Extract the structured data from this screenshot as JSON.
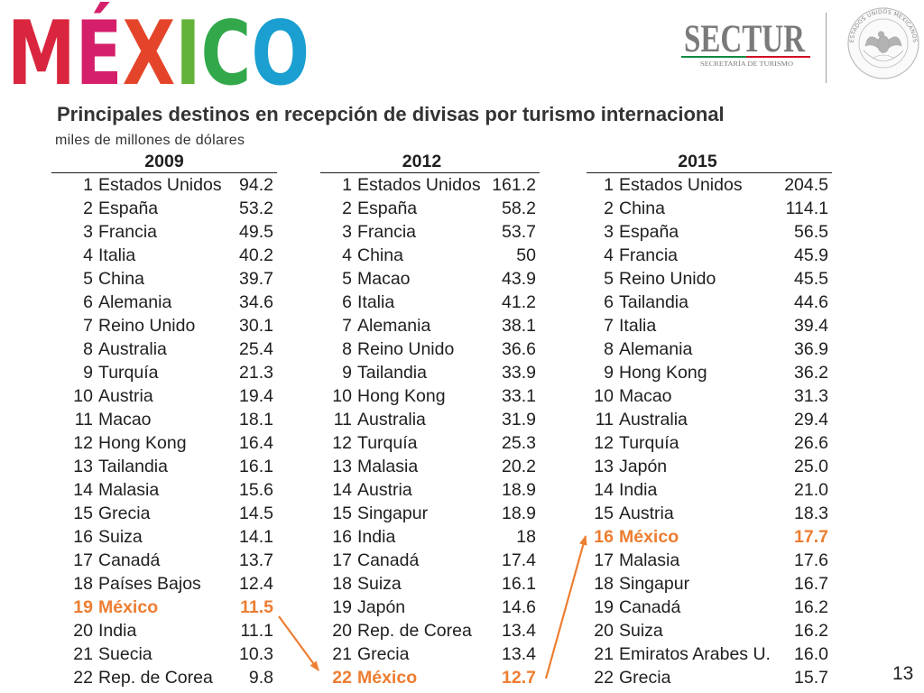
{
  "logo": {
    "letters": [
      "M",
      "É",
      "X",
      "I",
      "C",
      "O"
    ],
    "colors": [
      "#D9263E",
      "#D51F6B",
      "#E4452A",
      "#63B23A",
      "#33A84B",
      "#1A9FD0"
    ]
  },
  "sectur": {
    "name": "SECTUR",
    "tagline": "SECRETARÍA DE TURISMO",
    "flag_colors": [
      "#0B8A43",
      "#CE1126"
    ]
  },
  "seal": {
    "text": "ESTADOS UNIDOS MEXICANOS"
  },
  "title": "Principales destinos en recepción de divisas por turismo internacional",
  "subtitle": "miles de millones de dólares",
  "highlight_color": "#ED7D31",
  "tables": [
    {
      "year": "2009",
      "rows": [
        {
          "rank": "1",
          "country": "Estados Unidos",
          "value": "94.2"
        },
        {
          "rank": "2",
          "country": "España",
          "value": "53.2"
        },
        {
          "rank": "3",
          "country": "Francia",
          "value": "49.5"
        },
        {
          "rank": "4",
          "country": "Italia",
          "value": "40.2"
        },
        {
          "rank": "5",
          "country": "China",
          "value": "39.7"
        },
        {
          "rank": "6",
          "country": "Alemania",
          "value": "34.6"
        },
        {
          "rank": "7",
          "country": "Reino Unido",
          "value": "30.1"
        },
        {
          "rank": "8",
          "country": "Australia",
          "value": "25.4"
        },
        {
          "rank": "9",
          "country": "Turquía",
          "value": "21.3"
        },
        {
          "rank": "10",
          "country": "Austria",
          "value": "19.4"
        },
        {
          "rank": "11",
          "country": "Macao",
          "value": "18.1"
        },
        {
          "rank": "12",
          "country": "Hong Kong",
          "value": "16.4"
        },
        {
          "rank": "13",
          "country": "Tailandia",
          "value": "16.1"
        },
        {
          "rank": "14",
          "country": "Malasia",
          "value": "15.6"
        },
        {
          "rank": "15",
          "country": "Grecia",
          "value": "14.5"
        },
        {
          "rank": "16",
          "country": "Suiza",
          "value": "14.1"
        },
        {
          "rank": "17",
          "country": "Canadá",
          "value": "13.7"
        },
        {
          "rank": "18",
          "country": "Países Bajos",
          "value": "12.4"
        },
        {
          "rank": "19",
          "country": "México",
          "value": "11.5",
          "highlight": true
        },
        {
          "rank": "20",
          "country": "India",
          "value": "11.1"
        },
        {
          "rank": "21",
          "country": "Suecia",
          "value": "10.3"
        },
        {
          "rank": "22",
          "country": "Rep. de Corea",
          "value": "9.8"
        }
      ]
    },
    {
      "year": "2012",
      "rows": [
        {
          "rank": "1",
          "country": "Estados Unidos",
          "value": "161.2"
        },
        {
          "rank": "2",
          "country": "España",
          "value": "58.2"
        },
        {
          "rank": "3",
          "country": "Francia",
          "value": "53.7"
        },
        {
          "rank": "4",
          "country": "China",
          "value": "50"
        },
        {
          "rank": "5",
          "country": "Macao",
          "value": "43.9"
        },
        {
          "rank": "6",
          "country": "Italia",
          "value": "41.2"
        },
        {
          "rank": "7",
          "country": "Alemania",
          "value": "38.1"
        },
        {
          "rank": "8",
          "country": "Reino Unido",
          "value": "36.6"
        },
        {
          "rank": "9",
          "country": "Tailandia",
          "value": "33.9"
        },
        {
          "rank": "10",
          "country": "Hong Kong",
          "value": "33.1"
        },
        {
          "rank": "11",
          "country": "Australia",
          "value": "31.9"
        },
        {
          "rank": "12",
          "country": "Turquía",
          "value": "25.3"
        },
        {
          "rank": "13",
          "country": "Malasia",
          "value": "20.2"
        },
        {
          "rank": "14",
          "country": "Austria",
          "value": "18.9"
        },
        {
          "rank": "15",
          "country": "Singapur",
          "value": "18.9"
        },
        {
          "rank": "16",
          "country": "India",
          "value": "18"
        },
        {
          "rank": "17",
          "country": "Canadá",
          "value": "17.4"
        },
        {
          "rank": "18",
          "country": "Suiza",
          "value": "16.1"
        },
        {
          "rank": "19",
          "country": "Japón",
          "value": "14.6"
        },
        {
          "rank": "20",
          "country": "Rep. de Corea",
          "value": "13.4"
        },
        {
          "rank": "21",
          "country": "Grecia",
          "value": "13.4"
        },
        {
          "rank": "22",
          "country": "México",
          "value": "12.7",
          "highlight": true
        }
      ]
    },
    {
      "year": "2015",
      "rows": [
        {
          "rank": "1",
          "country": "Estados Unidos",
          "value": "204.5"
        },
        {
          "rank": "2",
          "country": "China",
          "value": "114.1"
        },
        {
          "rank": "3",
          "country": "España",
          "value": "56.5"
        },
        {
          "rank": "4",
          "country": "Francia",
          "value": "45.9"
        },
        {
          "rank": "5",
          "country": "Reino Unido",
          "value": "45.5"
        },
        {
          "rank": "6",
          "country": "Tailandia",
          "value": "44.6"
        },
        {
          "rank": "7",
          "country": "Italia",
          "value": "39.4"
        },
        {
          "rank": "8",
          "country": "Alemania",
          "value": "36.9"
        },
        {
          "rank": "9",
          "country": "Hong Kong",
          "value": "36.2"
        },
        {
          "rank": "10",
          "country": "Macao",
          "value": "31.3"
        },
        {
          "rank": "11",
          "country": "Australia",
          "value": "29.4"
        },
        {
          "rank": "12",
          "country": "Turquía",
          "value": "26.6"
        },
        {
          "rank": "13",
          "country": "Japón",
          "value": "25.0"
        },
        {
          "rank": "14",
          "country": "India",
          "value": "21.0"
        },
        {
          "rank": "15",
          "country": "Austria",
          "value": "18.3"
        },
        {
          "rank": "16",
          "country": "México",
          "value": "17.7",
          "highlight": true
        },
        {
          "rank": "17",
          "country": "Malasia",
          "value": "17.6"
        },
        {
          "rank": "18",
          "country": "Singapur",
          "value": "16.7"
        },
        {
          "rank": "19",
          "country": "Canadá",
          "value": "16.2"
        },
        {
          "rank": "20",
          "country": "Suiza",
          "value": "16.2"
        },
        {
          "rank": "21",
          "country": "Emiratos Arabes U.",
          "value": "16.0"
        },
        {
          "rank": "22",
          "country": "Grecia",
          "value": "15.7"
        }
      ]
    }
  ],
  "page_number": "13"
}
